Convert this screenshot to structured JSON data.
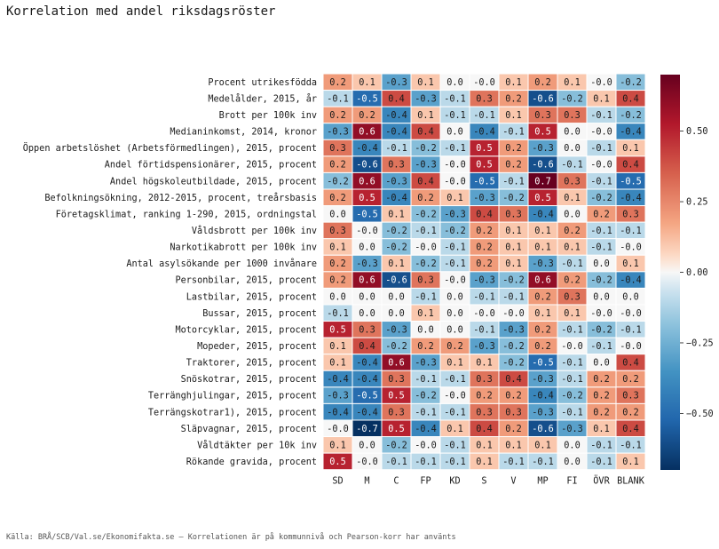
{
  "title": "Korrelation med andel riksdagsröster",
  "source_note": "Källa: BRÅ/SCB/Val.se/Ekonomifakta.se – Korrelationen är på kommunnivå och Pearson-korr har använts",
  "chart_data": {
    "type": "heatmap",
    "columns": [
      "SD",
      "M",
      "C",
      "FP",
      "KD",
      "S",
      "V",
      "MP",
      "FI",
      "ÖVR",
      "BLANK"
    ],
    "rows": [
      "Procent utrikesfödda",
      "Medelålder, 2015, år",
      "Brott per 100k inv",
      "Medianinkomst, 2014, kronor",
      "Öppen arbetslöshet (Arbetsförmedlingen), 2015, procent",
      "Andel förtidspensionärer, 2015, procent",
      "Andel högskoleutbildade, 2015, procent",
      "Befolkningsökning, 2012-2015, procent, treårsbasis",
      "Företagsklimat, ranking 1-290, 2015, ordningstal",
      "Våldsbrott per 100k inv",
      "Narkotikabrott per 100k inv",
      "Antal asylsökande per 1000 invånare",
      "Personbilar, 2015, procent",
      "Lastbilar, 2015, procent",
      "Bussar, 2015, procent",
      "Motorcyklar, 2015, procent",
      "Mopeder, 2015, procent",
      "Traktorer, 2015, procent",
      "Snöskotrar, 2015, procent",
      "Terränghjulingar, 2015, procent",
      "Terrängskotrar1), 2015, procent",
      "Släpvagnar, 2015, procent",
      "Våldtäkter per 10k inv",
      "Rökande gravida, procent"
    ],
    "values": [
      [
        0.2,
        0.1,
        -0.3,
        0.1,
        0.0,
        -0.0,
        0.1,
        0.2,
        0.1,
        -0.0,
        -0.2
      ],
      [
        -0.1,
        -0.5,
        0.4,
        -0.3,
        -0.1,
        0.3,
        0.2,
        -0.6,
        -0.2,
        0.1,
        0.4
      ],
      [
        0.2,
        0.2,
        -0.4,
        0.1,
        -0.1,
        -0.1,
        0.1,
        0.3,
        0.3,
        -0.1,
        -0.2
      ],
      [
        -0.3,
        0.6,
        -0.4,
        0.4,
        0.0,
        -0.4,
        -0.1,
        0.5,
        0.0,
        -0.0,
        -0.4
      ],
      [
        0.3,
        -0.4,
        -0.1,
        -0.2,
        -0.1,
        0.5,
        0.2,
        -0.3,
        0.0,
        -0.1,
        0.1
      ],
      [
        0.2,
        -0.6,
        0.3,
        -0.3,
        -0.0,
        0.5,
        0.2,
        -0.6,
        -0.1,
        -0.0,
        0.4
      ],
      [
        -0.2,
        0.6,
        -0.3,
        0.4,
        -0.0,
        -0.5,
        -0.1,
        0.7,
        0.3,
        -0.1,
        -0.5
      ],
      [
        0.2,
        0.5,
        -0.4,
        0.2,
        0.1,
        -0.3,
        -0.2,
        0.5,
        0.1,
        -0.2,
        -0.4
      ],
      [
        0.0,
        -0.5,
        0.1,
        -0.2,
        -0.3,
        0.4,
        0.3,
        -0.4,
        0.0,
        0.2,
        0.3
      ],
      [
        0.3,
        -0.0,
        -0.2,
        -0.1,
        -0.2,
        0.2,
        0.1,
        0.1,
        0.2,
        -0.1,
        -0.1
      ],
      [
        0.1,
        0.0,
        -0.2,
        -0.0,
        -0.1,
        0.2,
        0.1,
        0.1,
        0.1,
        -0.1,
        -0.0
      ],
      [
        0.2,
        -0.3,
        0.1,
        -0.2,
        -0.1,
        0.2,
        0.1,
        -0.3,
        -0.1,
        0.0,
        0.1
      ],
      [
        0.2,
        0.6,
        -0.6,
        0.3,
        -0.0,
        -0.3,
        -0.2,
        0.6,
        0.2,
        -0.2,
        -0.4
      ],
      [
        0.0,
        0.0,
        0.0,
        -0.1,
        0.0,
        -0.1,
        -0.1,
        0.2,
        0.3,
        0.0,
        0.0
      ],
      [
        -0.1,
        0.0,
        0.0,
        0.1,
        0.0,
        -0.0,
        -0.0,
        0.1,
        0.1,
        -0.0,
        -0.0
      ],
      [
        0.5,
        0.3,
        -0.3,
        0.0,
        0.0,
        -0.1,
        -0.3,
        0.2,
        -0.1,
        -0.2,
        -0.1
      ],
      [
        0.1,
        0.4,
        -0.2,
        0.2,
        0.2,
        -0.3,
        -0.2,
        0.2,
        -0.0,
        -0.1,
        -0.0
      ],
      [
        0.1,
        -0.4,
        0.6,
        -0.3,
        0.1,
        0.1,
        -0.2,
        -0.5,
        -0.1,
        0.0,
        0.4
      ],
      [
        -0.4,
        -0.4,
        0.3,
        -0.1,
        -0.1,
        0.3,
        0.4,
        -0.3,
        -0.1,
        0.2,
        0.2
      ],
      [
        -0.3,
        -0.5,
        0.5,
        -0.2,
        -0.0,
        0.2,
        0.2,
        -0.4,
        -0.2,
        0.2,
        0.3
      ],
      [
        -0.4,
        -0.4,
        0.3,
        -0.1,
        -0.1,
        0.3,
        0.3,
        -0.3,
        -0.1,
        0.2,
        0.2
      ],
      [
        -0.0,
        -0.7,
        0.5,
        -0.4,
        0.1,
        0.4,
        0.2,
        -0.6,
        -0.3,
        0.1,
        0.4
      ],
      [
        0.1,
        0.0,
        -0.2,
        -0.0,
        -0.1,
        0.1,
        0.1,
        0.1,
        0.0,
        -0.1,
        -0.1
      ],
      [
        0.5,
        -0.0,
        -0.1,
        -0.1,
        -0.1,
        0.1,
        -0.1,
        -0.1,
        0.0,
        -0.1,
        0.1
      ]
    ],
    "colorscale": {
      "min": -0.7,
      "max": 0.7,
      "ticks": [
        0.5,
        0.25,
        0.0,
        -0.25,
        -0.5
      ],
      "tick_labels": [
        "0.50",
        "0.25",
        "0.00",
        "−0.25",
        "−0.50"
      ],
      "low_color": "#053061",
      "mid_color": "#f7f7f7",
      "high_color": "#67001f"
    }
  }
}
